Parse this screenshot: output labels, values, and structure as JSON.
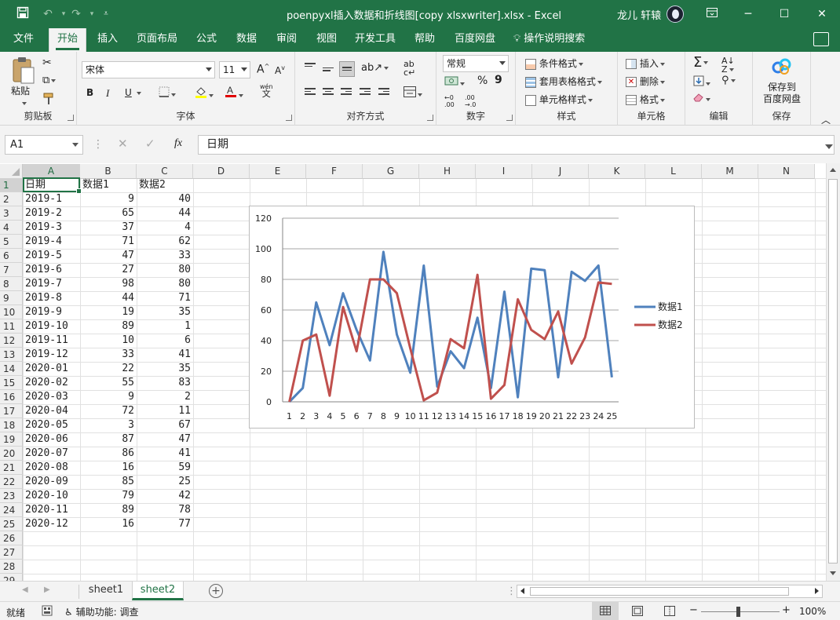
{
  "titlebar": {
    "title": "poenpyxl插入数据和折线图[copy xlsxwriter].xlsx  -  Excel",
    "user": "龙儿 轩辕"
  },
  "tabs": [
    "文件",
    "开始",
    "插入",
    "页面布局",
    "公式",
    "数据",
    "审阅",
    "视图",
    "开发工具",
    "帮助",
    "百度网盘",
    "操作说明搜索"
  ],
  "active_tab": "开始",
  "ribbon": {
    "clipboard": {
      "paste": "粘贴",
      "label": "剪贴板"
    },
    "font": {
      "name": "宋体",
      "size": "11",
      "bold": "B",
      "italic": "I",
      "underline": "U",
      "label": "字体",
      "grow": "A",
      "shrink": "A",
      "phonetic": "wén"
    },
    "align": {
      "label": "对齐方式"
    },
    "number": {
      "format": "常规",
      "percent": "%",
      "comma": "9",
      "label": "数字"
    },
    "styles": {
      "conditional": "条件格式",
      "table": "套用表格格式",
      "cell": "单元格样式",
      "label": "样式"
    },
    "cells": {
      "insert": "插入",
      "delete": "删除",
      "format": "格式",
      "label": "单元格"
    },
    "editing": {
      "label": "编辑"
    },
    "save": {
      "button": "保存到\n百度网盘",
      "line1": "保存到",
      "line2": "百度网盘",
      "label": "保存"
    }
  },
  "formula_bar": {
    "name_box": "A1",
    "fx": "fx",
    "value": "日期"
  },
  "columns": [
    "A",
    "B",
    "C",
    "D",
    "E",
    "F",
    "G",
    "H",
    "I",
    "J",
    "K",
    "L",
    "M",
    "N"
  ],
  "row_numbers": [
    "1",
    "2",
    "3",
    "4",
    "5",
    "6",
    "7",
    "8",
    "9",
    "10",
    "11",
    "12",
    "13",
    "14",
    "15",
    "16",
    "17",
    "18",
    "19",
    "20",
    "21",
    "22",
    "23",
    "24",
    "25",
    "26",
    "27",
    "28",
    "29"
  ],
  "table": {
    "headers": [
      "日期",
      "数据1",
      "数据2"
    ],
    "rows": [
      [
        "2019-1",
        "9",
        "40"
      ],
      [
        "2019-2",
        "65",
        "44"
      ],
      [
        "2019-3",
        "37",
        "4"
      ],
      [
        "2019-4",
        "71",
        "62"
      ],
      [
        "2019-5",
        "47",
        "33"
      ],
      [
        "2019-6",
        "27",
        "80"
      ],
      [
        "2019-7",
        "98",
        "80"
      ],
      [
        "2019-8",
        "44",
        "71"
      ],
      [
        "2019-9",
        "19",
        "35"
      ],
      [
        "2019-10",
        "89",
        "1"
      ],
      [
        "2019-11",
        "10",
        "6"
      ],
      [
        "2019-12",
        "33",
        "41"
      ],
      [
        "2020-01",
        "22",
        "35"
      ],
      [
        "2020-02",
        "55",
        "83"
      ],
      [
        "2020-03",
        "9",
        "2"
      ],
      [
        "2020-04",
        "72",
        "11"
      ],
      [
        "2020-05",
        "3",
        "67"
      ],
      [
        "2020-06",
        "87",
        "47"
      ],
      [
        "2020-07",
        "86",
        "41"
      ],
      [
        "2020-08",
        "16",
        "59"
      ],
      [
        "2020-09",
        "85",
        "25"
      ],
      [
        "2020-10",
        "79",
        "42"
      ],
      [
        "2020-11",
        "89",
        "78"
      ],
      [
        "2020-12",
        "16",
        "77"
      ]
    ]
  },
  "chart_data": {
    "type": "line",
    "x": [
      "1",
      "2",
      "3",
      "4",
      "5",
      "6",
      "7",
      "8",
      "9",
      "10",
      "11",
      "12",
      "13",
      "14",
      "15",
      "16",
      "17",
      "18",
      "19",
      "20",
      "21",
      "22",
      "23",
      "24",
      "25"
    ],
    "ylim": [
      0,
      120
    ],
    "yticks": [
      "0",
      "20",
      "40",
      "60",
      "80",
      "100",
      "120"
    ],
    "grid": true,
    "legend": "right",
    "series": [
      {
        "name": "数据1",
        "color": "#4f81bd",
        "values": [
          0,
          9,
          65,
          37,
          71,
          47,
          27,
          98,
          44,
          19,
          89,
          10,
          33,
          22,
          55,
          9,
          72,
          3,
          87,
          86,
          16,
          85,
          79,
          89,
          16
        ]
      },
      {
        "name": "数据2",
        "color": "#c0504d",
        "values": [
          0,
          40,
          44,
          4,
          62,
          33,
          80,
          80,
          71,
          35,
          1,
          6,
          41,
          35,
          83,
          2,
          11,
          67,
          47,
          41,
          59,
          25,
          42,
          78,
          77
        ]
      }
    ]
  },
  "sheets": [
    "sheet1",
    "sheet2"
  ],
  "active_sheet": "sheet2",
  "status": {
    "ready": "就绪",
    "accessibility": "辅助功能: 调查",
    "zoom": "100%"
  },
  "colors": {
    "accent": "#217346"
  }
}
